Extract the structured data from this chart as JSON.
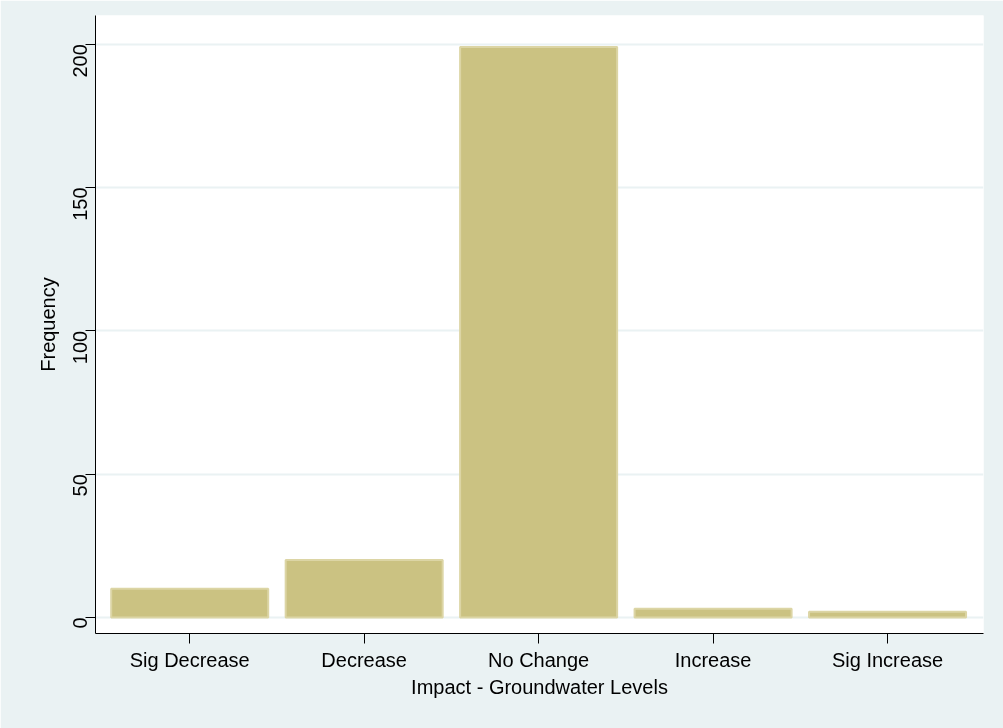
{
  "chart_data": {
    "type": "bar",
    "xlabel": "Impact - Groundwater Levels",
    "ylabel": "Frequency",
    "categories": [
      "Sig Decrease",
      "Decrease",
      "No Change",
      "Increase",
      "Sig Increase"
    ],
    "values": [
      10,
      20,
      199,
      3,
      2
    ],
    "color": "#cbc282",
    "ylim": [
      -5.6,
      210
    ],
    "yticks": [
      0,
      50,
      100,
      150,
      200
    ],
    "grid": "y"
  }
}
